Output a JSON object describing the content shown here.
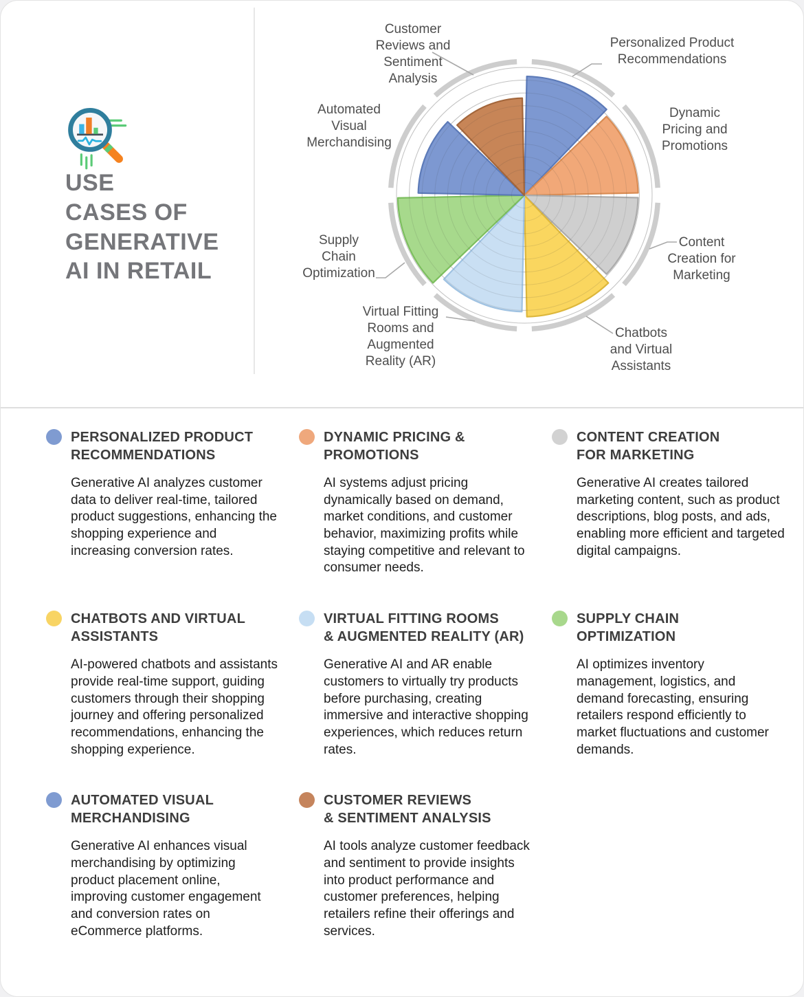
{
  "header": {
    "title": "USE\nCASES OF\nGENERATIVE\nAI IN RETAIL",
    "icon": "magnifier-bar-chart-icon"
  },
  "chart_data": {
    "type": "pie",
    "subtype": "radial-sector-chart (8 equal 45° sectors, radius = relative emphasis)",
    "title": "Use cases of Generative AI in Retail",
    "grid": {
      "rings": 10,
      "outer_ring": true,
      "ring_color": "#cdcdcd",
      "gridline_color": "#c7c7c7"
    },
    "value_scale": "fraction of full radius (0-1), estimated from gridlines",
    "segments": [
      {
        "label": "Personalized Product\nRecommendations",
        "value": 0.93,
        "fill": "#7D98D1",
        "border": "#5C7AB8"
      },
      {
        "label": "Dynamic\nPricing and\nPromotions",
        "value": 0.89,
        "fill": "#F1A878",
        "border": "#D98C54"
      },
      {
        "label": "Content\nCreation for\nMarketing",
        "value": 0.89,
        "fill": "#CFCFCF",
        "border": "#ABABAB"
      },
      {
        "label": "Chatbots\nand Virtual\nAssistants",
        "value": 0.95,
        "fill": "#FAD65F",
        "border": "#DDB73C"
      },
      {
        "label": "Virtual Fitting\nRooms and\nAugmented\nReality (AR)",
        "value": 0.91,
        "fill": "#C9DFF3",
        "border": "#9FC2E2"
      },
      {
        "label": "Supply\nChain\nOptimization",
        "value": 0.99,
        "fill": "#A7D98C",
        "border": "#7CBE5E"
      },
      {
        "label": "Automated\nVisual\nMerchandising",
        "value": 0.83,
        "fill": "#7D98D1",
        "border": "#5C7AB8"
      },
      {
        "label": "Customer\nReviews and\nSentiment\nAnalysis",
        "value": 0.76,
        "fill": "#C78557",
        "border": "#A3663B"
      }
    ]
  },
  "sections": [
    {
      "dot": "#7F9BD1",
      "title": "PERSONALIZED PRODUCT\nRECOMMENDATIONS",
      "body": "Generative AI analyzes customer data to deliver real-time, tailored product suggestions, enhancing the shopping experience and increasing conversion rates."
    },
    {
      "dot": "#EFA87C",
      "title": "DYNAMIC PRICING &\nPROMOTIONS",
      "body": "AI systems adjust pricing dynamically based on demand, market conditions, and customer behavior, maximizing profits while staying competitive and relevant to consumer needs."
    },
    {
      "dot": "#D2D2D2",
      "title": "CONTENT CREATION\nFOR MARKETING",
      "body": "Generative AI creates tailored marketing content, such as product descriptions, blog posts, and ads, enabling more efficient and targeted digital campaigns."
    },
    {
      "dot": "#F8D464",
      "title": "CHATBOTS AND VIRTUAL\nASSISTANTS",
      "body": "AI-powered chatbots and assistants provide real-time support, guiding customers through their shopping journey and offering personalized recommendations, enhancing the shopping experience."
    },
    {
      "dot": "#C6DEF3",
      "title": "VIRTUAL FITTING ROOMS\n& AUGMENTED REALITY (AR)",
      "body": "Generative AI and AR enable customers to virtually try products before purchasing, creating immersive and interactive shopping experiences, which reduces return rates."
    },
    {
      "dot": "#A8D88C",
      "title": "SUPPLY CHAIN\nOPTIMIZATION",
      "body": "AI optimizes inventory management, logistics, and demand forecasting, ensuring retailers respond efficiently to market fluctuations and customer demands."
    },
    {
      "dot": "#7F9BD1",
      "title": "AUTOMATED VISUAL\nMERCHANDISING",
      "body": "Generative AI enhances visual merchandising by optimizing product placement online, improving customer engagement and conversion rates on eCommerce platforms."
    },
    {
      "dot": "#C5845C",
      "title": "CUSTOMER REVIEWS\n& SENTIMENT ANALYSIS",
      "body": "AI tools analyze customer feedback and sentiment to provide insights into product performance and customer preferences, helping retailers refine their offerings and services."
    }
  ]
}
